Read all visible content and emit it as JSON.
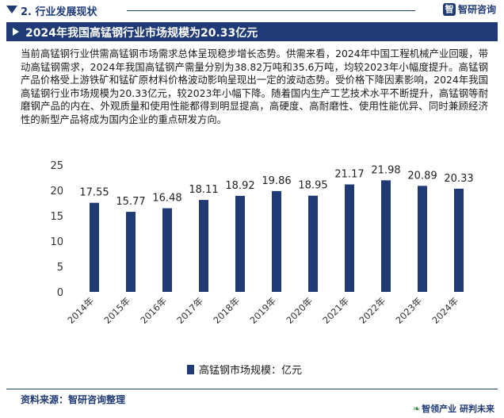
{
  "header": {
    "section_title": "2. 行业发展现状",
    "brand": "智研咨询",
    "brand_logo_char": "智"
  },
  "banner": {
    "title": "2024年我国高锰钢行业市场规模为20.33亿元"
  },
  "description": "当前高锰钢行业供需高锰钢市场需求总体呈现稳步增长态势。供需来看，2024年中国工程机械产业回暖，带动高锰钢需求，2024年我国高锰钢产需量分别为38.82万吨和35.6万吨，均较2023年小幅度提升。高锰钢产品价格受上游铁矿和锰矿原材料价格波动影响呈现出一定的波动态势。受价格下降因素影响，2024年我国高锰钢行业市场规模为20.33亿元，较2023年小幅下降。随着国内生产工艺技术水平不断提升，高锰钢等耐磨钢产品的内在、外观质量和使用性能都得到明显提高，高硬度、高耐磨性、使用性能优异、同时兼顾经济性的新型产品将成为国内企业的重点研发方向。",
  "chart_data": {
    "type": "bar",
    "categories": [
      "2014年",
      "2015年",
      "2016年",
      "2017年",
      "2018年",
      "2019年",
      "2020年",
      "2021年",
      "2022年",
      "2023年",
      "2024年"
    ],
    "series": [
      {
        "name": "高锰钢市场规模：亿元",
        "values": [
          17.55,
          15.77,
          16.48,
          18.11,
          18.92,
          19.86,
          18.95,
          21.17,
          21.98,
          20.89,
          20.33
        ]
      }
    ],
    "ylim": [
      0,
      25
    ],
    "yticks": [
      0,
      5,
      10,
      15,
      20,
      25
    ],
    "grid": false,
    "legend_position": "bottom",
    "bar_color": "#1f3a75"
  },
  "footer": {
    "source": "资料来源：智研咨询整理",
    "brand": "智领产业  研判未来"
  }
}
